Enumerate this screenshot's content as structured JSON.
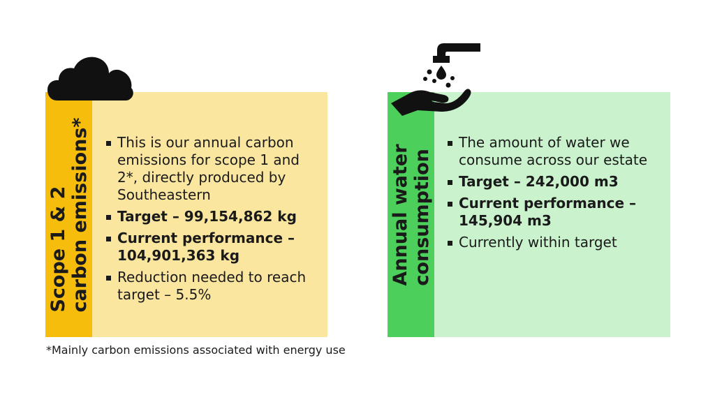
{
  "carbon_panel": {
    "title_line1": "Scope 1 & 2",
    "title_line2": "carbon emissions*",
    "icon": "cloud-icon",
    "bullets": [
      "This is our annual carbon emissions for scope 1 and 2*, directly produced by Southeastern",
      "Target – 99,154,862 kg",
      "Current performance – 104,901,363 kg",
      "Reduction needed to reach target – 5.5%"
    ]
  },
  "water_panel": {
    "title_line1": "Annual water",
    "title_line2": "consumption",
    "icon": "tap-hand-water-icon",
    "bullets": [
      "The amount of water we consume across our estate",
      "Target – 242,000 m3",
      "Current performance – 145,904 m3",
      "Currently within target"
    ]
  },
  "footnote": "*Mainly carbon emissions associated with energy use",
  "colors": {
    "carbon_strip": "#f7bd0c",
    "carbon_bg": "#fbe6a0",
    "water_strip": "#4dcf5b",
    "water_bg": "#c9f2cd"
  }
}
